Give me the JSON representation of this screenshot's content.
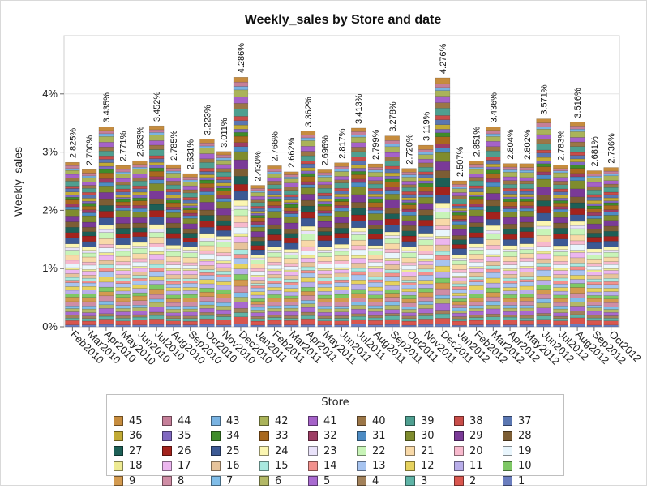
{
  "chart_data": {
    "type": "bar",
    "stacked": true,
    "title": "Weekly_sales by Store and date",
    "xlabel": "",
    "ylabel": "Weekly_sales",
    "ylim": [
      0,
      5
    ],
    "yticks": [
      0,
      1,
      2,
      3,
      4
    ],
    "ytick_labels": [
      "0%",
      "1%",
      "2%",
      "3%",
      "4%"
    ],
    "grid": true,
    "legend_placement": "bottom",
    "legend_title": "Store",
    "categories": [
      "Feb2010",
      "Mar2010",
      "Apr2010",
      "May2010",
      "Jun2010",
      "Jul2010",
      "Aug2010",
      "Sep2010",
      "Oct2010",
      "Nov2010",
      "Dec2010",
      "Jan2011",
      "Feb2011",
      "Mar2011",
      "Apr2011",
      "May2011",
      "Jun2011",
      "Jul2011",
      "Aug2011",
      "Sep2011",
      "Oct2011",
      "Nov2011",
      "Dec2011",
      "Jan2012",
      "Feb2012",
      "Mar2012",
      "Apr2012",
      "May2012",
      "Jun2012",
      "Jul2012",
      "Aug2012",
      "Sep2012",
      "Oct2012"
    ],
    "totals": [
      2.825,
      2.7,
      3.435,
      2.771,
      2.853,
      3.452,
      2.785,
      2.631,
      3.223,
      3.011,
      4.286,
      2.43,
      2.766,
      2.662,
      3.362,
      2.696,
      2.817,
      3.413,
      2.799,
      3.278,
      2.72,
      3.119,
      4.276,
      2.507,
      2.851,
      3.436,
      2.804,
      2.802,
      3.571,
      2.783,
      3.516,
      2.681,
      2.736
    ],
    "total_labels": [
      "2.825%",
      "2.700%",
      "3.435%",
      "2.771%",
      "2.853%",
      "3.452%",
      "2.785%",
      "2.631%",
      "3.223%",
      "3.011%",
      "4.286%",
      "2.430%",
      "2.766%",
      "2.662%",
      "3.362%",
      "2.696%",
      "2.817%",
      "3.413%",
      "2.799%",
      "3.278%",
      "2.720%",
      "3.119%",
      "4.276%",
      "2.507%",
      "2.851%",
      "3.436%",
      "2.804%",
      "2.802%",
      "3.571%",
      "2.783%",
      "3.516%",
      "2.681%",
      "2.736%"
    ],
    "stack_order": [
      "1",
      "2",
      "3",
      "4",
      "5",
      "6",
      "7",
      "8",
      "9",
      "10",
      "11",
      "12",
      "13",
      "14",
      "15",
      "16",
      "17",
      "18",
      "19",
      "20",
      "21",
      "22",
      "23",
      "24",
      "25",
      "26",
      "27",
      "28",
      "29",
      "30",
      "31",
      "32",
      "33",
      "34",
      "35",
      "36",
      "37",
      "38",
      "39",
      "40",
      "41",
      "42",
      "43",
      "44",
      "45"
    ],
    "store_colors": {
      "1": "#6a7dbe",
      "2": "#d9564e",
      "3": "#5fb3a6",
      "4": "#a2815a",
      "5": "#a86ad0",
      "6": "#b3b866",
      "7": "#80bde8",
      "8": "#cf8da5",
      "9": "#d39a4f",
      "10": "#7ec865",
      "11": "#b9aeea",
      "12": "#e6d25e",
      "13": "#a7c4f0",
      "14": "#f3918d",
      "15": "#a9e9e0",
      "16": "#e7c39b",
      "17": "#ecb6ef",
      "18": "#eeeb93",
      "19": "#e9f6fd",
      "20": "#f7b9cd",
      "21": "#f8d9a8",
      "22": "#c8f4b8",
      "23": "#e9e2fa",
      "24": "#fbf6b2",
      "25": "#3c5994",
      "26": "#a3231d",
      "27": "#1d5f56",
      "28": "#7c5d34",
      "29": "#7a3a97",
      "30": "#7f8c2e",
      "31": "#4d8cc4",
      "32": "#9e3d64",
      "33": "#a9691e",
      "34": "#3f8c2a",
      "35": "#8068c0",
      "36": "#c2ab35",
      "37": "#5a76b1",
      "38": "#c84d49",
      "39": "#4f9f90",
      "40": "#9b7647",
      "41": "#a562c8",
      "42": "#aab359",
      "43": "#79b3e2",
      "44": "#c57f99",
      "45": "#c68c3e"
    }
  },
  "legend": {
    "title": "Store",
    "items": [
      {
        "label": "45",
        "color": "#c68c3e"
      },
      {
        "label": "44",
        "color": "#c57f99"
      },
      {
        "label": "43",
        "color": "#79b3e2"
      },
      {
        "label": "42",
        "color": "#aab359"
      },
      {
        "label": "41",
        "color": "#a562c8"
      },
      {
        "label": "40",
        "color": "#9b7647"
      },
      {
        "label": "39",
        "color": "#4f9f90"
      },
      {
        "label": "38",
        "color": "#c84d49"
      },
      {
        "label": "37",
        "color": "#5a76b1"
      },
      {
        "label": "36",
        "color": "#c2ab35"
      },
      {
        "label": "35",
        "color": "#8068c0"
      },
      {
        "label": "34",
        "color": "#3f8c2a"
      },
      {
        "label": "33",
        "color": "#a9691e"
      },
      {
        "label": "32",
        "color": "#9e3d64"
      },
      {
        "label": "31",
        "color": "#4d8cc4"
      },
      {
        "label": "30",
        "color": "#7f8c2e"
      },
      {
        "label": "29",
        "color": "#7a3a97"
      },
      {
        "label": "28",
        "color": "#7c5d34"
      },
      {
        "label": "27",
        "color": "#1d5f56"
      },
      {
        "label": "26",
        "color": "#a3231d"
      },
      {
        "label": "25",
        "color": "#3c5994"
      },
      {
        "label": "24",
        "color": "#fbf6b2"
      },
      {
        "label": "23",
        "color": "#e9e2fa"
      },
      {
        "label": "22",
        "color": "#c8f4b8"
      },
      {
        "label": "21",
        "color": "#f8d9a8"
      },
      {
        "label": "20",
        "color": "#f7b9cd"
      },
      {
        "label": "19",
        "color": "#e9f6fd"
      },
      {
        "label": "18",
        "color": "#eeeb93"
      },
      {
        "label": "17",
        "color": "#ecb6ef"
      },
      {
        "label": "16",
        "color": "#e7c39b"
      },
      {
        "label": "15",
        "color": "#a9e9e0"
      },
      {
        "label": "14",
        "color": "#f3918d"
      },
      {
        "label": "13",
        "color": "#a7c4f0"
      },
      {
        "label": "12",
        "color": "#e6d25e"
      },
      {
        "label": "11",
        "color": "#b9aeea"
      },
      {
        "label": "10",
        "color": "#7ec865"
      },
      {
        "label": "9",
        "color": "#d39a4f"
      },
      {
        "label": "8",
        "color": "#cf8da5"
      },
      {
        "label": "7",
        "color": "#80bde8"
      },
      {
        "label": "6",
        "color": "#b3b866"
      },
      {
        "label": "5",
        "color": "#a86ad0"
      },
      {
        "label": "4",
        "color": "#a2815a"
      },
      {
        "label": "3",
        "color": "#5fb3a6"
      },
      {
        "label": "2",
        "color": "#d9564e"
      },
      {
        "label": "1",
        "color": "#6a7dbe"
      }
    ]
  }
}
